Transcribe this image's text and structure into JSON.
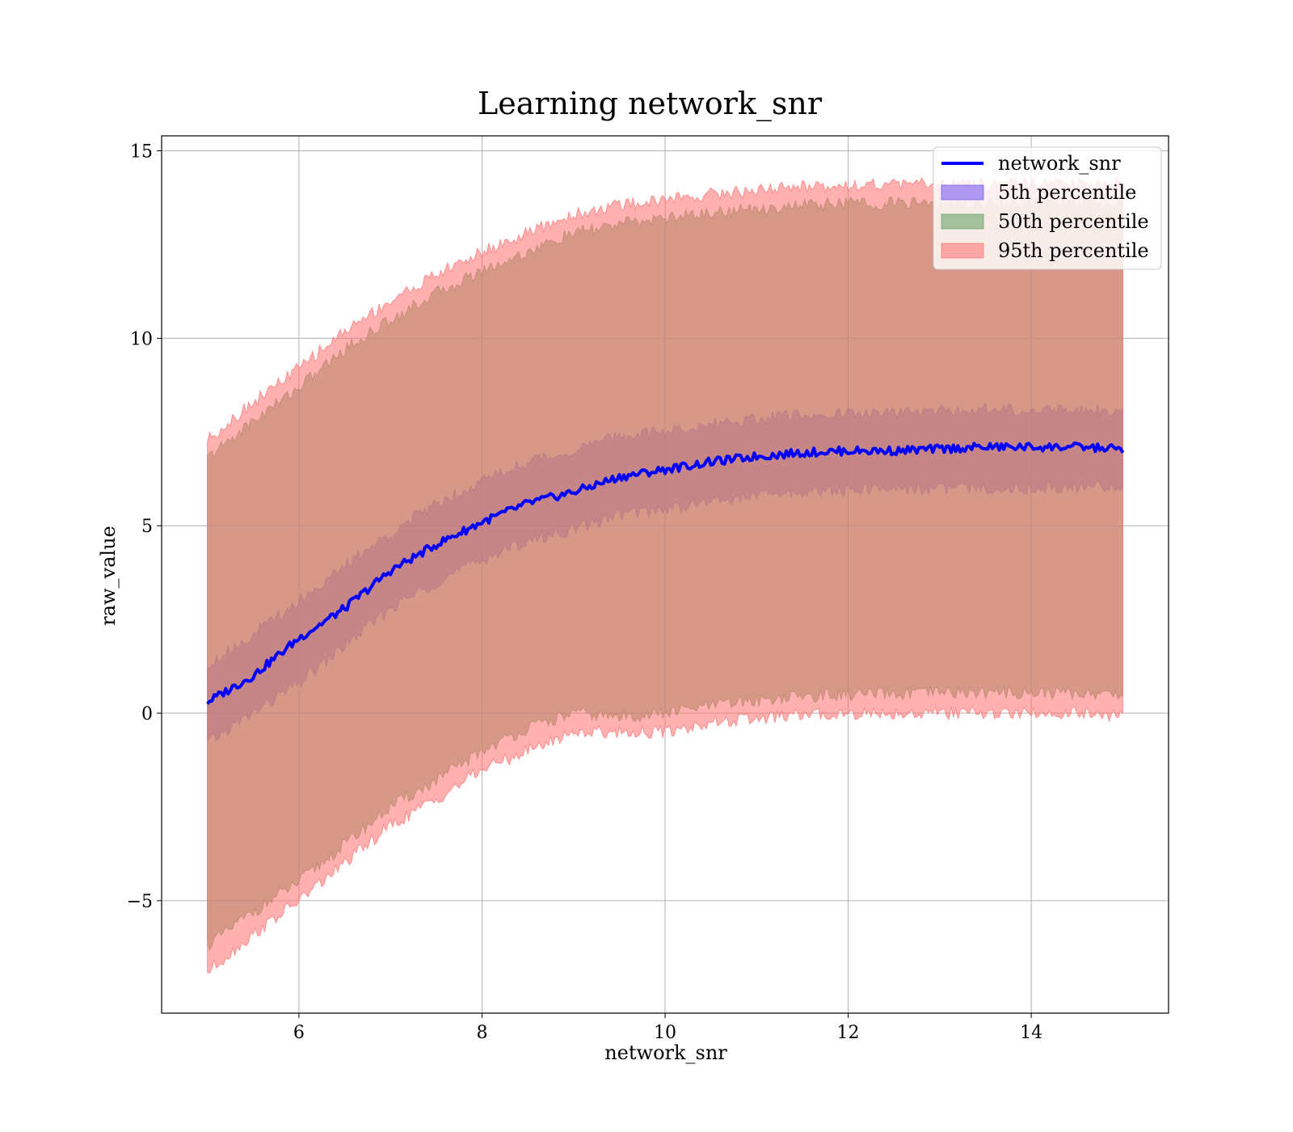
{
  "chart_data": {
    "type": "area",
    "title": "Learning network_snr",
    "xlabel": "network_snr",
    "ylabel": "raw_value",
    "xlim": [
      4.5,
      15.5
    ],
    "ylim": [
      -8.0,
      15.4
    ],
    "x_ticks": [
      6,
      8,
      10,
      12,
      14
    ],
    "y_ticks": [
      -5,
      0,
      5,
      10,
      15
    ],
    "x_tick_labels": [
      "6",
      "8",
      "10",
      "12",
      "14"
    ],
    "y_tick_labels": [
      "−5",
      "0",
      "5",
      "10",
      "15"
    ],
    "grid": true,
    "legend_position": "top-right",
    "x": [
      5,
      5.5,
      6,
      6.5,
      7,
      7.5,
      8,
      8.5,
      9,
      9.5,
      10,
      10.5,
      11,
      11.5,
      12,
      12.5,
      13,
      13.5,
      14,
      14.5,
      15
    ],
    "series": [
      {
        "name": "network_snr",
        "kind": "line",
        "color": "#0000ff",
        "values": [
          0.3,
          1.0,
          2.0,
          2.8,
          3.8,
          4.5,
          5.1,
          5.6,
          5.9,
          6.3,
          6.5,
          6.7,
          6.85,
          6.95,
          7.0,
          7.0,
          7.05,
          7.1,
          7.1,
          7.1,
          7.05
        ]
      },
      {
        "name": "5th percentile",
        "kind": "band",
        "color": "#6a50f0",
        "lower": [
          -0.8,
          0.0,
          0.8,
          1.8,
          2.8,
          3.5,
          4.1,
          4.6,
          4.9,
          5.3,
          5.45,
          5.65,
          5.8,
          5.9,
          5.95,
          6.0,
          6.0,
          6.0,
          6.0,
          6.05,
          6.0
        ],
        "upper": [
          1.3,
          2.1,
          3.0,
          3.9,
          4.8,
          5.6,
          6.2,
          6.7,
          7.0,
          7.4,
          7.5,
          7.7,
          7.85,
          7.95,
          8.0,
          8.0,
          8.05,
          8.1,
          8.1,
          8.1,
          8.1
        ]
      },
      {
        "name": "50th percentile",
        "kind": "band",
        "color": "#5ca05c",
        "lower": [
          -6.2,
          -5.3,
          -4.5,
          -3.5,
          -2.5,
          -1.8,
          -1.0,
          -0.4,
          0.0,
          -0.1,
          0.0,
          0.2,
          0.35,
          0.45,
          0.5,
          0.5,
          0.55,
          0.55,
          0.55,
          0.55,
          0.5
        ],
        "upper": [
          6.8,
          7.8,
          8.7,
          9.7,
          10.5,
          11.2,
          11.8,
          12.3,
          12.8,
          13.05,
          13.2,
          13.35,
          13.45,
          13.55,
          13.6,
          13.6,
          13.6,
          13.6,
          13.6,
          13.6,
          13.6
        ]
      },
      {
        "name": "95th percentile",
        "kind": "band",
        "color": "#ff7070",
        "lower": [
          -6.9,
          -5.9,
          -5.0,
          -4.0,
          -3.0,
          -2.3,
          -1.5,
          -1.0,
          -0.5,
          -0.5,
          -0.5,
          -0.25,
          -0.15,
          -0.05,
          0.0,
          0.0,
          0.0,
          0.0,
          0.0,
          0.0,
          -0.1
        ],
        "upper": [
          7.3,
          8.3,
          9.2,
          10.2,
          11.0,
          11.7,
          12.3,
          12.8,
          13.3,
          13.55,
          13.7,
          13.85,
          13.95,
          14.05,
          14.1,
          14.1,
          14.1,
          14.1,
          14.1,
          14.1,
          14.1
        ]
      }
    ]
  }
}
